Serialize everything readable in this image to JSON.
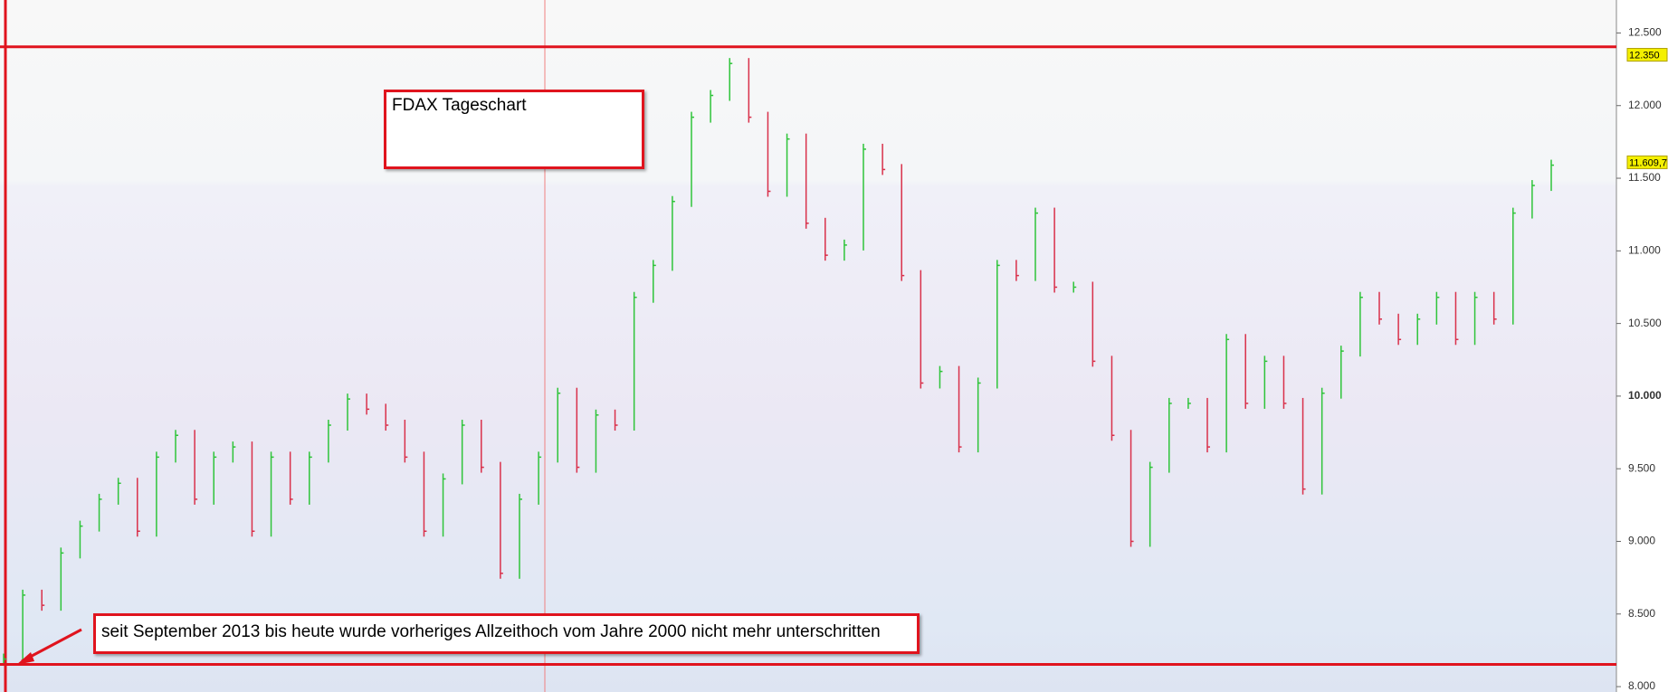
{
  "chart_data": {
    "type": "step-bars",
    "values": [
      8190,
      8630,
      8560,
      8920,
      9105,
      9290,
      9400,
      9070,
      9580,
      9730,
      9290,
      9580,
      9650,
      9070,
      9580,
      9290,
      9580,
      9800,
      9980,
      9910,
      9800,
      9580,
      9070,
      9430,
      9800,
      9510,
      8780,
      9290,
      9580,
      10020,
      9510,
      9870,
      9800,
      10680,
      10900,
      11340,
      11920,
      12070,
      12290,
      11920,
      11410,
      11770,
      11190,
      10970,
      11040,
      11700,
      11560,
      10830,
      10090,
      10170,
      9650,
      10090,
      10900,
      10830,
      11260,
      10750,
      10750,
      10240,
      9730,
      9000,
      9510,
      9950,
      9950,
      9650,
      10390,
      9950,
      10240,
      9950,
      9360,
      10020,
      10310,
      10680,
      10530,
      10390,
      10530,
      10680,
      10390,
      10680,
      10530,
      11260,
      11450,
      11590
    ],
    "up_color": "#2fc43a",
    "down_color": "#d9304a",
    "ylim": [
      7963,
      12727
    ],
    "yticks": [
      {
        "value": 12500,
        "label": "12.500"
      },
      {
        "value": 12000,
        "label": "12.000"
      },
      {
        "value": 11500,
        "label": "11.500"
      },
      {
        "value": 11000,
        "label": "11.000"
      },
      {
        "value": 10500,
        "label": "10.500"
      },
      {
        "value": 10000,
        "label": "10.000"
      },
      {
        "value": 9500,
        "label": "9.500"
      },
      {
        "value": 9000,
        "label": "9.000"
      },
      {
        "value": 8500,
        "label": "8.500"
      },
      {
        "value": 8000,
        "label": "8.000"
      }
    ],
    "price_labels": [
      {
        "value": 12350,
        "label": "12.350"
      },
      {
        "value": 11609.7,
        "label": "11.609,7"
      }
    ],
    "hlines": [
      12405,
      8153
    ],
    "hline_color": "#e0141e",
    "annotations": [
      "FDAX Tageschart",
      "seit September 2013 bis heute wurde vorheriges Allzeithoch vom Jahre 2000 nicht mehr unterschritten"
    ]
  }
}
